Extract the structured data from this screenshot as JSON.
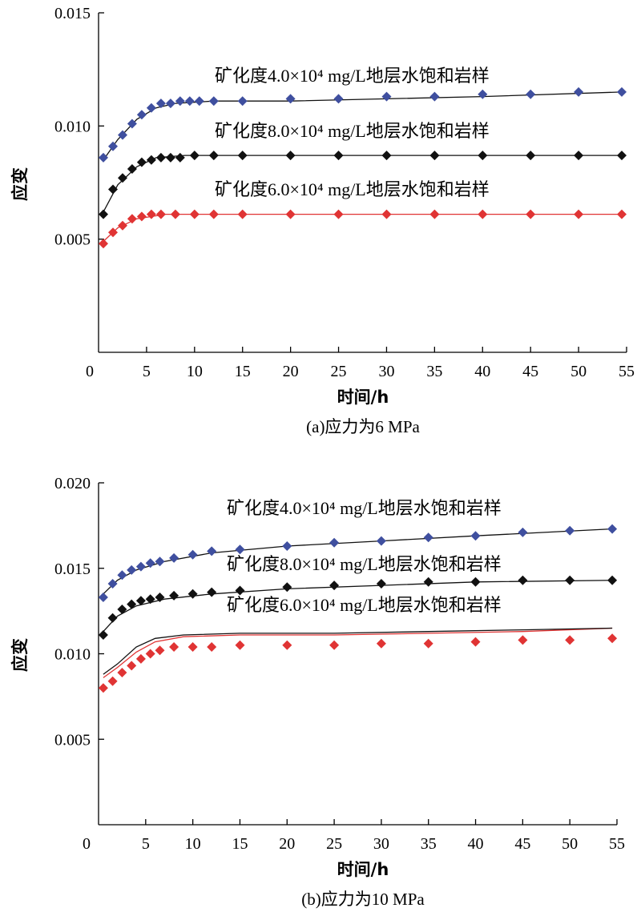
{
  "chart_data": [
    {
      "type": "scatter",
      "title": "",
      "caption": "(a)应力为6 MPa",
      "xlabel": "时间/h",
      "ylabel": "应变",
      "xlim": [
        0,
        55
      ],
      "ylim": [
        0,
        0.015
      ],
      "xticks": [
        "0",
        "5",
        "10",
        "15",
        "20",
        "25",
        "30",
        "35",
        "40",
        "45",
        "50",
        "55"
      ],
      "yticks": [
        "0.005",
        "0.010",
        "0.015"
      ],
      "annotations": [
        "矿化度4.0×10⁴ mg/L地层水饱和岩样",
        "矿化度8.0×10⁴ mg/L地层水饱和岩样",
        "矿化度6.0×10⁴ mg/L地层水饱和岩样"
      ],
      "series": [
        {
          "color": "#3f4f9f",
          "marker": "diamond",
          "x": [
            0.5,
            1.5,
            2.5,
            3.5,
            4.5,
            5.5,
            6.5,
            7.5,
            8.5,
            9.5,
            10.5,
            12,
            15,
            20,
            25,
            30,
            35,
            40,
            45,
            50,
            54.5
          ],
          "values": [
            0.0086,
            0.0091,
            0.0096,
            0.0101,
            0.0105,
            0.0108,
            0.011,
            0.011,
            0.0111,
            0.0111,
            0.0111,
            0.0111,
            0.0111,
            0.0112,
            0.0112,
            0.0113,
            0.0113,
            0.0114,
            0.0114,
            0.0115,
            0.0115
          ],
          "fit": [
            [
              0.5,
              0.0085
            ],
            [
              2,
              0.0094
            ],
            [
              4,
              0.0103
            ],
            [
              6,
              0.0108
            ],
            [
              8,
              0.011
            ],
            [
              12,
              0.0111
            ],
            [
              20,
              0.0111
            ],
            [
              30,
              0.0112
            ],
            [
              40,
              0.0113
            ],
            [
              54.5,
              0.0115
            ]
          ]
        },
        {
          "color": "#111111",
          "marker": "diamond",
          "x": [
            0.5,
            1.5,
            2.5,
            3.5,
            4.5,
            5.5,
            6.5,
            7.5,
            8.5,
            10,
            12,
            15,
            20,
            25,
            30,
            35,
            40,
            45,
            50,
            54.5
          ],
          "values": [
            0.0061,
            0.0072,
            0.0077,
            0.0081,
            0.0084,
            0.0085,
            0.0086,
            0.0086,
            0.0086,
            0.0087,
            0.0087,
            0.0087,
            0.0087,
            0.0087,
            0.0087,
            0.0087,
            0.0087,
            0.0087,
            0.0087,
            0.0087
          ],
          "fit": [
            [
              0.5,
              0.0062
            ],
            [
              2,
              0.0074
            ],
            [
              4,
              0.0082
            ],
            [
              6,
              0.0086
            ],
            [
              9,
              0.0087
            ],
            [
              15,
              0.0087
            ],
            [
              30,
              0.0087
            ],
            [
              54.5,
              0.0087
            ]
          ]
        },
        {
          "color": "#e03434",
          "marker": "diamond",
          "x": [
            0.5,
            1.5,
            2.5,
            3.5,
            4.5,
            5.5,
            6.5,
            8,
            10,
            12,
            15,
            20,
            25,
            30,
            35,
            40,
            45,
            50,
            54.5
          ],
          "values": [
            0.0048,
            0.0053,
            0.0056,
            0.0059,
            0.006,
            0.0061,
            0.0061,
            0.0061,
            0.0061,
            0.0061,
            0.0061,
            0.0061,
            0.0061,
            0.0061,
            0.0061,
            0.0061,
            0.0061,
            0.0061,
            0.0061
          ],
          "fit": [
            [
              0.5,
              0.0049
            ],
            [
              2,
              0.0055
            ],
            [
              4,
              0.0059
            ],
            [
              7,
              0.0061
            ],
            [
              12,
              0.0061
            ],
            [
              54.5,
              0.0061
            ]
          ]
        }
      ]
    },
    {
      "type": "scatter",
      "title": "",
      "caption": "(b)应力为10 MPa",
      "xlabel": "时间/h",
      "ylabel": "应变",
      "xlim": [
        0,
        55
      ],
      "ylim": [
        0,
        0.02
      ],
      "xticks": [
        "0",
        "5",
        "10",
        "15",
        "20",
        "25",
        "30",
        "35",
        "40",
        "45",
        "50",
        "55"
      ],
      "yticks": [
        "0.005",
        "0.010",
        "0.015",
        "0.020"
      ],
      "annotations": [
        "矿化度4.0×10⁴ mg/L地层水饱和岩样",
        "矿化度8.0×10⁴ mg/L地层水饱和岩样",
        "矿化度6.0×10⁴ mg/L地层水饱和岩样"
      ],
      "series": [
        {
          "color": "#3f4f9f",
          "marker": "diamond",
          "x": [
            0.5,
            1.5,
            2.5,
            3.5,
            4.5,
            5.5,
            6.5,
            8,
            10,
            12,
            15,
            20,
            25,
            30,
            35,
            40,
            45,
            50,
            54.5
          ],
          "values": [
            0.0133,
            0.0141,
            0.0146,
            0.0149,
            0.0151,
            0.0153,
            0.0154,
            0.0156,
            0.0158,
            0.016,
            0.0161,
            0.0163,
            0.0165,
            0.0166,
            0.0168,
            0.0169,
            0.0171,
            0.0172,
            0.0173
          ],
          "fit": [
            [
              0.5,
              0.0135
            ],
            [
              2,
              0.0143
            ],
            [
              4,
              0.0149
            ],
            [
              7,
              0.0154
            ],
            [
              12,
              0.0159
            ],
            [
              20,
              0.0163
            ],
            [
              30,
              0.0166
            ],
            [
              40,
              0.0169
            ],
            [
              54.5,
              0.0173
            ]
          ]
        },
        {
          "color": "#111111",
          "marker": "diamond",
          "x": [
            0.5,
            1.5,
            2.5,
            3.5,
            4.5,
            5.5,
            6.5,
            8,
            10,
            12,
            15,
            20,
            25,
            30,
            35,
            40,
            45,
            50,
            54.5
          ],
          "values": [
            0.0111,
            0.0121,
            0.0126,
            0.0129,
            0.0131,
            0.0132,
            0.0133,
            0.0134,
            0.0135,
            0.0136,
            0.0137,
            0.0139,
            0.014,
            0.0141,
            0.0142,
            0.0142,
            0.0143,
            0.0143,
            0.0143
          ],
          "fit": [
            [
              0.5,
              0.0113
            ],
            [
              2,
              0.0122
            ],
            [
              4,
              0.0128
            ],
            [
              7,
              0.0132
            ],
            [
              12,
              0.0135
            ],
            [
              20,
              0.0138
            ],
            [
              30,
              0.014
            ],
            [
              40,
              0.0142
            ],
            [
              54.5,
              0.0143
            ]
          ]
        },
        {
          "color": "#e03434",
          "marker": "diamond",
          "x": [
            0.5,
            1.5,
            2.5,
            3.5,
            4.5,
            5.5,
            6.5,
            8,
            10,
            12,
            15,
            20,
            25,
            30,
            35,
            40,
            45,
            50,
            54.5
          ],
          "values": [
            0.008,
            0.0084,
            0.0089,
            0.0093,
            0.0097,
            0.01,
            0.0102,
            0.0104,
            0.0104,
            0.0104,
            0.0105,
            0.0105,
            0.0105,
            0.0106,
            0.0106,
            0.0107,
            0.0108,
            0.0108,
            0.0109
          ],
          "fit": [
            [
              0.5,
              0.0086
            ],
            [
              2,
              0.0092
            ],
            [
              4,
              0.0101
            ],
            [
              6,
              0.0107
            ],
            [
              9,
              0.011
            ],
            [
              15,
              0.0111
            ],
            [
              25,
              0.0111
            ],
            [
              35,
              0.0112
            ],
            [
              45,
              0.0113
            ],
            [
              54.5,
              0.0115
            ]
          ],
          "fit2": [
            [
              0.5,
              0.0088
            ],
            [
              2,
              0.0094
            ],
            [
              4,
              0.0104
            ],
            [
              6,
              0.0109
            ],
            [
              9,
              0.0111
            ],
            [
              15,
              0.0112
            ],
            [
              25,
              0.0112
            ],
            [
              35,
              0.0113
            ],
            [
              45,
              0.0114
            ],
            [
              54.5,
              0.0115
            ]
          ]
        }
      ]
    }
  ]
}
